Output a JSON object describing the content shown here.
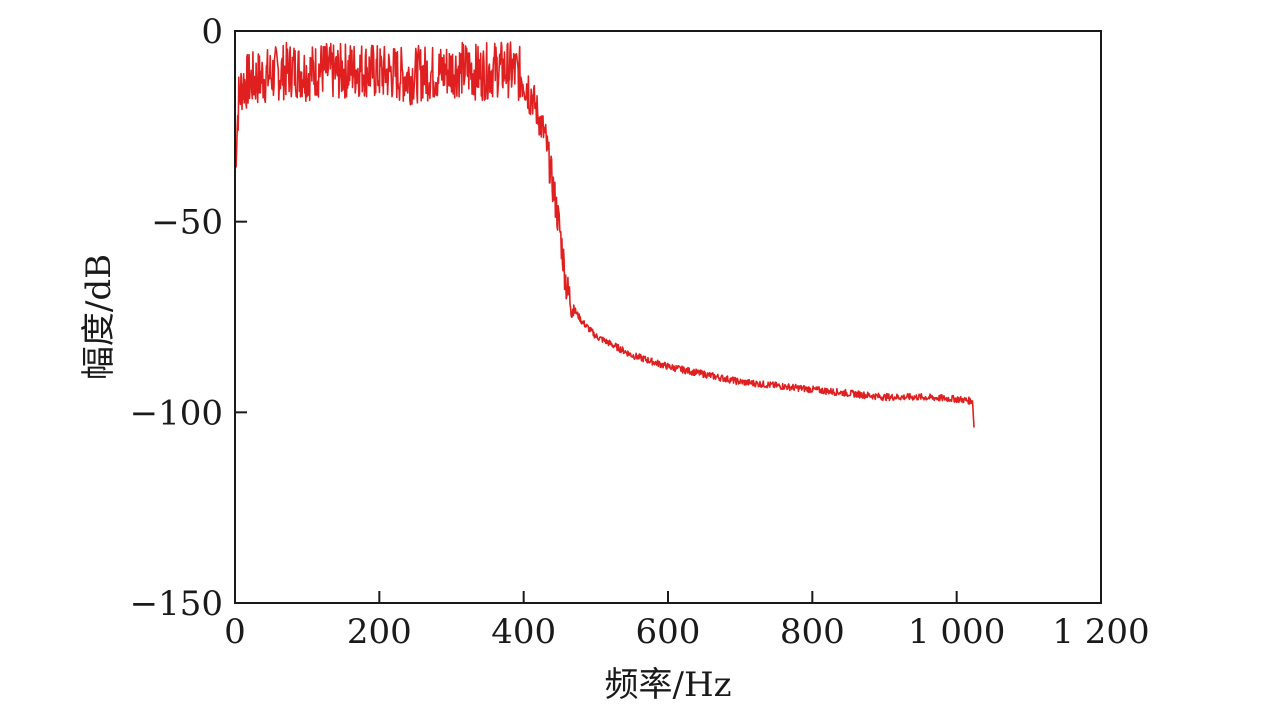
{
  "chart_data": {
    "type": "line",
    "title": "",
    "xlabel": "频率/Hz",
    "ylabel": "幅度/dB",
    "xlim": [
      0,
      1200
    ],
    "ylim": [
      -150,
      0
    ],
    "x_ticks": [
      0,
      200,
      400,
      600,
      800,
      1000,
      1200
    ],
    "x_tick_labels": [
      "0",
      "200",
      "400",
      "600",
      "800",
      "1 000",
      "1 200"
    ],
    "y_ticks": [
      0,
      -50,
      -100,
      -150
    ],
    "y_tick_labels": [
      "0",
      "−50",
      "−100",
      "−150"
    ],
    "grid": false,
    "legend": "none",
    "series": [
      {
        "color": "#e02020",
        "x": [
          0,
          5,
          10,
          20,
          40,
          60,
          80,
          100,
          120,
          140,
          160,
          180,
          200,
          220,
          240,
          260,
          280,
          300,
          320,
          340,
          360,
          380,
          400,
          410,
          420,
          430,
          440,
          450,
          460,
          470,
          480,
          500,
          550,
          600,
          650,
          700,
          750,
          800,
          850,
          900,
          950,
          1000,
          1020,
          1022,
          1024
        ],
        "y": [
          -35,
          -18,
          -14,
          -13,
          -12,
          -11,
          -10,
          -11,
          -10,
          -11,
          -10,
          -10,
          -11,
          -11,
          -12,
          -11,
          -11,
          -10,
          -10,
          -11,
          -10,
          -10,
          -12,
          -16,
          -22,
          -28,
          -40,
          -52,
          -68,
          -73,
          -76,
          -80,
          -85,
          -88,
          -90,
          -92,
          -93,
          -94,
          -95,
          -96,
          -96,
          -96.5,
          -97,
          -97,
          -104
        ]
      }
    ]
  }
}
